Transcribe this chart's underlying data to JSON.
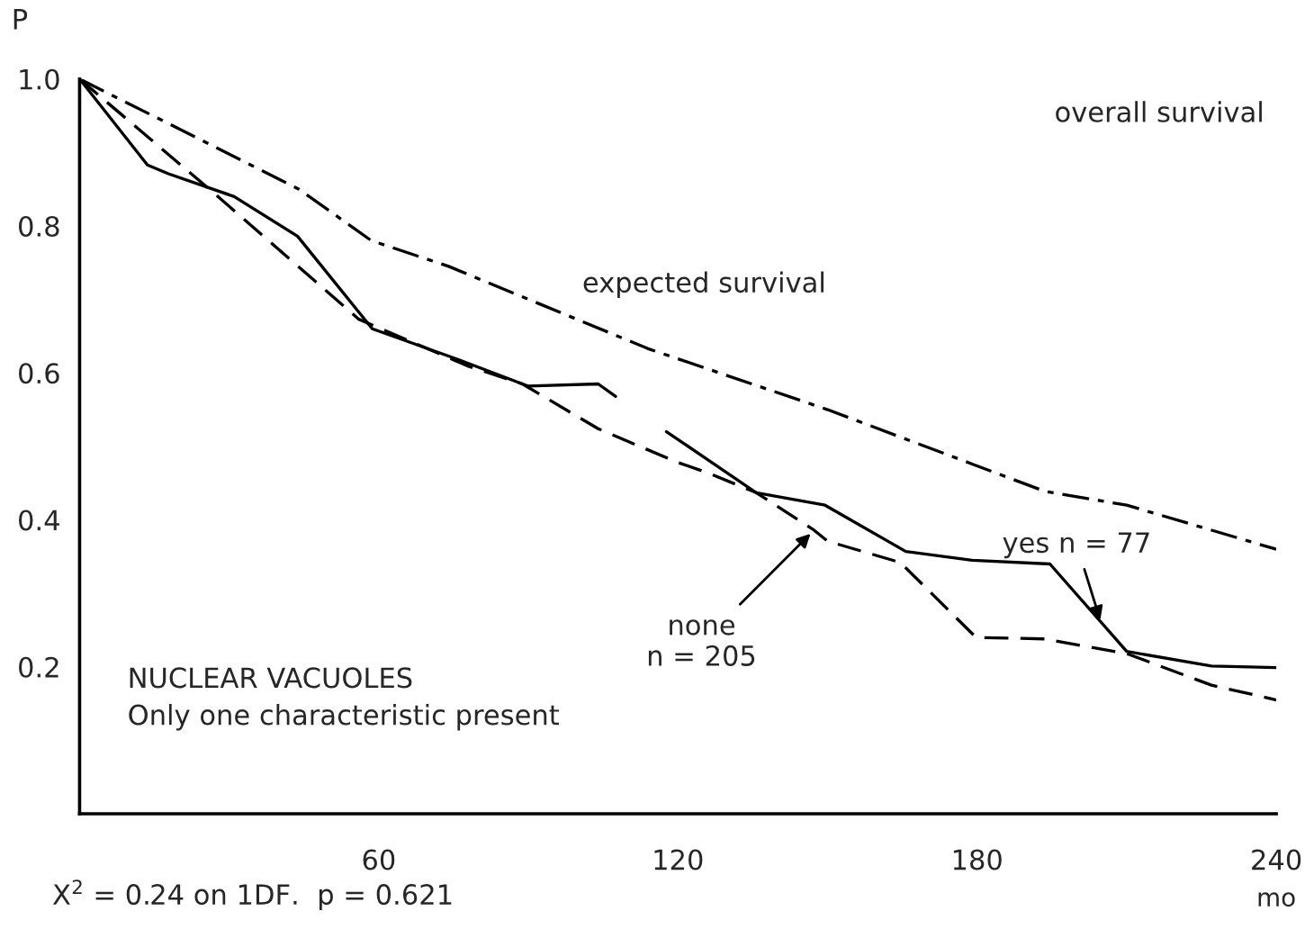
{
  "chart_data": {
    "type": "line",
    "xlabel": "mo",
    "ylabel": "P",
    "xlim": [
      0,
      240
    ],
    "ylim": [
      0,
      1.0
    ],
    "xticks": [
      60,
      120,
      180,
      240
    ],
    "yticks": [
      0.2,
      0.4,
      0.6,
      0.8,
      {
        "value": 1.0,
        "label": "1.0"
      }
    ],
    "grid": false,
    "series": [
      {
        "color": "#000000",
        "line_style": "dashdot",
        "x": [
          0,
          44,
          58.5,
          74,
          114,
          150,
          179,
          193.5,
          210,
          240
        ],
        "values": [
          1.0,
          0.85,
          0.78,
          0.745,
          0.633,
          0.55,
          0.476,
          0.439,
          0.42,
          0.36
        ]
      },
      {
        "color": "#000000",
        "line_style": "solid",
        "x": [
          0,
          13.6,
          17.8,
          31,
          43.7,
          58.7,
          75.6,
          90,
          104,
          107.5,
          112,
          117.7,
          135.7,
          149.5,
          165.7,
          179,
          194.6,
          210,
          227,
          240
        ],
        "values": [
          1.0,
          0.883,
          0.871,
          0.84,
          0.786,
          0.66,
          0.619,
          0.582,
          0.585,
          0.568,
          null,
          0.52,
          0.437,
          0.42,
          0.357,
          0.345,
          0.34,
          0.221,
          0.201,
          0.199
        ]
      },
      {
        "color": "#000000",
        "line_style": "dashed",
        "x": [
          0,
          27.4,
          56,
          78,
          88.8,
          104,
          120,
          126,
          135.7,
          147.3,
          150,
          164.6,
          179.8,
          193.5,
          210,
          227,
          240
        ],
        "values": [
          1.0,
          0.842,
          0.673,
          0.609,
          0.585,
          0.524,
          0.478,
          0.464,
          0.437,
          0.386,
          0.371,
          0.342,
          0.24,
          0.238,
          0.218,
          0.175,
          0.155
        ]
      }
    ],
    "annotations": [
      "expected survival",
      {
        "text": "none\nn = 205",
        "x": 147.3,
        "y": 0.386
      },
      {
        "text": "yes n = 77",
        "x": 205,
        "y": 0.257
      },
      "overall survival",
      "NUCLEAR VACUOLES\nOnly one characteristic present",
      "X$^{2}$ = 0.24 on 1DF.  p = 0.621"
    ]
  }
}
